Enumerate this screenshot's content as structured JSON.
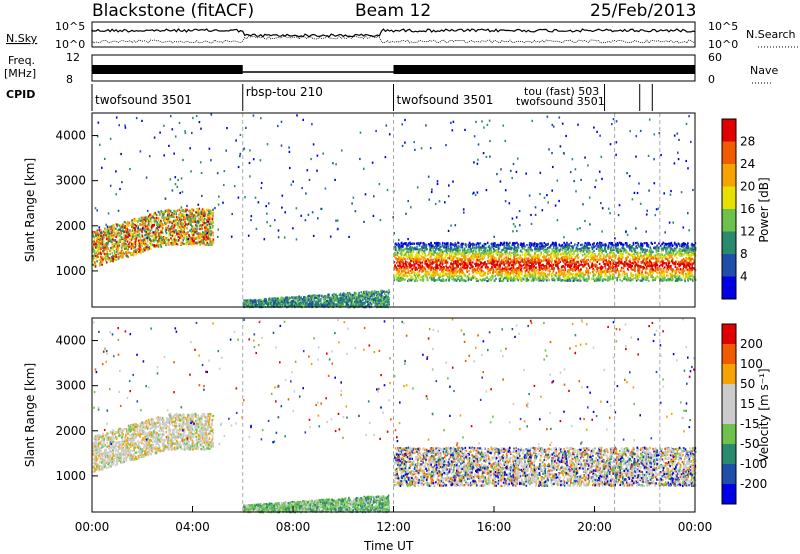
{
  "header": {
    "radar": "Blackstone (fitACF)",
    "beam": "Beam 12",
    "date": "25/Feb/2013"
  },
  "top_panels": {
    "nsky_label": "N.Sky",
    "nsearch_label": "N.Search",
    "freq_label": "Freq.",
    "freq_unit": "[MHz]",
    "nave_label": "Nave",
    "cpid_label": "CPID",
    "nsky_ticks": [
      "10^5",
      "10^0"
    ],
    "nsearch_ticks": [
      "10^5",
      "10^0"
    ],
    "freq_ticks": [
      "12",
      "8"
    ],
    "nave_ticks": [
      "60",
      "0"
    ],
    "cpid_segments": [
      {
        "start_h": 0,
        "end_h": 6,
        "label": "twofsound 3501"
      },
      {
        "start_h": 6,
        "end_h": 12,
        "label": "rbsp-tou 210"
      },
      {
        "start_h": 12,
        "end_h": 24,
        "label": "twofsound 3501"
      }
    ],
    "cpid_overlap_labels": [
      "tou (fast) 503",
      "twofsound 3501"
    ]
  },
  "panels": {
    "slant_range_label": "Slant Range [km]",
    "power_label": "Power [dB]",
    "velocity_label": "Velocity [m s⁻¹]",
    "x_label": "Time UT"
  },
  "colors": {
    "power_scale": [
      "#0000e6",
      "#1f4fa8",
      "#2a8a6e",
      "#6cc24a",
      "#e8e000",
      "#f5a300",
      "#f05a00",
      "#e00000"
    ],
    "velocity_scale": [
      "#e00000",
      "#f05a00",
      "#f5a300",
      "#cccccc",
      "#cccccc",
      "#6cc24a",
      "#2a8a6e",
      "#1f4fa8",
      "#0000e6"
    ]
  },
  "chart_data": [
    {
      "type": "heatmap",
      "title": "Power",
      "xlabel": "Time UT",
      "ylabel": "Slant Range [km]",
      "x_ticks": [
        "00:00",
        "04:00",
        "08:00",
        "12:00",
        "16:00",
        "20:00",
        "00:00"
      ],
      "xlim_hours": [
        0,
        24
      ],
      "ylim": [
        200,
        4500
      ],
      "y_ticks": [
        1000,
        2000,
        3000,
        4000
      ],
      "colorbar_label": "Power [dB]",
      "colorbar_ticks": [
        4,
        8,
        12,
        16,
        20,
        24,
        28
      ],
      "colorbar_range": [
        0,
        30
      ],
      "features": [
        {
          "name": "early backscatter band",
          "t_start_h": 0.0,
          "t_end_h": 4.8,
          "range_km": [
            1300,
            2200
          ],
          "power_db": 18
        },
        {
          "name": "ground scatter near radar",
          "t_start_h": 6.0,
          "t_end_h": 11.8,
          "range_km": [
            200,
            500
          ],
          "power_db": 10
        },
        {
          "name": "afternoon backscatter band",
          "t_start_h": 12.0,
          "t_end_h": 24.0,
          "range_km": [
            800,
            1600
          ],
          "power_db": 22
        }
      ]
    },
    {
      "type": "heatmap",
      "title": "Velocity",
      "xlabel": "Time UT",
      "ylabel": "Slant Range [km]",
      "x_ticks": [
        "00:00",
        "04:00",
        "08:00",
        "12:00",
        "16:00",
        "20:00",
        "00:00"
      ],
      "xlim_hours": [
        0,
        24
      ],
      "ylim": [
        200,
        4500
      ],
      "y_ticks": [
        1000,
        2000,
        3000,
        4000
      ],
      "colorbar_label": "Velocity [m s⁻¹]",
      "colorbar_ticks": [
        200,
        100,
        50,
        15,
        -15,
        -50,
        -100,
        -200
      ],
      "features": [
        {
          "name": "early backscatter band",
          "t_start_h": 0.0,
          "t_end_h": 4.8,
          "range_km": [
            1300,
            2200
          ],
          "velocity_ms": 0
        },
        {
          "name": "ground scatter near radar",
          "t_start_h": 6.0,
          "t_end_h": 11.8,
          "range_km": [
            200,
            500
          ],
          "velocity_ms": 30
        },
        {
          "name": "afternoon backscatter band",
          "t_start_h": 12.0,
          "t_end_h": 24.0,
          "range_km": [
            800,
            1600
          ],
          "velocity_ms": 0
        }
      ]
    }
  ]
}
